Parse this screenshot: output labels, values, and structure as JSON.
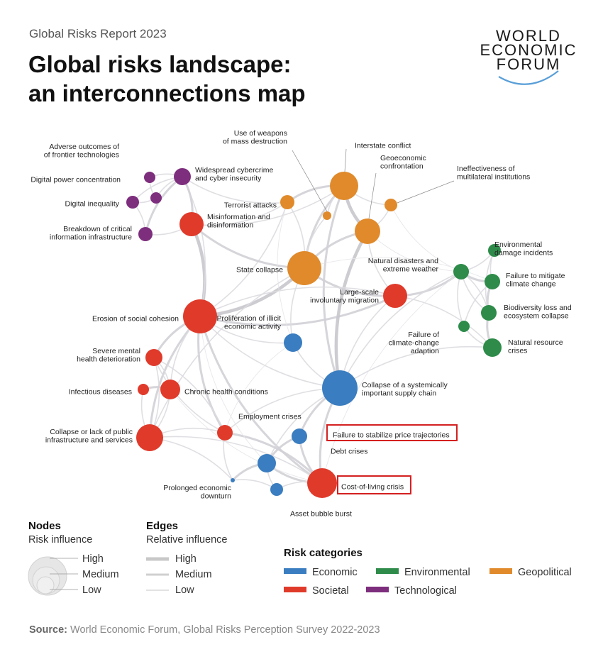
{
  "header": {
    "report": "Global Risks Report 2023",
    "title_line1": "Global risks landscape:",
    "title_line2": "an interconnections map"
  },
  "logo": {
    "line1": "WORLD",
    "line2": "ECONOMIC",
    "line3": "FORUM"
  },
  "colors": {
    "Economic": "#3a7dc0",
    "Environmental": "#2e8b4a",
    "Geopolitical": "#e08a2b",
    "Societal": "#e03a2b",
    "Technological": "#7d2e7d",
    "highlight": "#d42020"
  },
  "nodes": [
    {
      "id": "adverse",
      "cat": "Technological",
      "label": [
        "Adverse outcomes of",
        "of frontier technologies"
      ]
    },
    {
      "id": "digitalpower",
      "cat": "Technological",
      "label": [
        "Digital power concentration"
      ]
    },
    {
      "id": "digitalineq",
      "cat": "Technological",
      "label": [
        "Digital inequality"
      ]
    },
    {
      "id": "breakdown",
      "cat": "Technological",
      "label": [
        "Breakdown of critical",
        "information infrastructure"
      ]
    },
    {
      "id": "cyber",
      "cat": "Technological",
      "label": [
        "Widespread cybercrime",
        "and cyber insecurity"
      ]
    },
    {
      "id": "misinfo",
      "cat": "Societal",
      "label": [
        "Misinformation and",
        "disinformation"
      ]
    },
    {
      "id": "terror",
      "cat": "Geopolitical",
      "label": [
        "Terrorist attacks"
      ]
    },
    {
      "id": "wmd",
      "cat": "Geopolitical",
      "label": [
        "Use of weapons",
        "of mass destruction"
      ]
    },
    {
      "id": "interstate",
      "cat": "Geopolitical",
      "label": [
        "Interstate conflict"
      ]
    },
    {
      "id": "geoecon",
      "cat": "Geopolitical",
      "label": [
        "Geoeconomic",
        "confrontation"
      ]
    },
    {
      "id": "multilat",
      "cat": "Geopolitical",
      "label": [
        "Ineffectiveness of",
        "multilateral institutions"
      ]
    },
    {
      "id": "statecollapse",
      "cat": "Geopolitical",
      "label": [
        "State collapse"
      ]
    },
    {
      "id": "natdis",
      "cat": "Environmental",
      "label": [
        "Natural disasters and",
        "extreme weather"
      ]
    },
    {
      "id": "migration",
      "cat": "Societal",
      "label": [
        "Large-scale",
        "involuntary migration"
      ]
    },
    {
      "id": "envdamage",
      "cat": "Environmental",
      "label": [
        "Environmental",
        "damage incidents"
      ]
    },
    {
      "id": "mitigate",
      "cat": "Environmental",
      "label": [
        "Failure to mitigate",
        "climate change"
      ]
    },
    {
      "id": "biodiv",
      "cat": "Environmental",
      "label": [
        "Biodiversity loss and",
        "ecosystem collapse"
      ]
    },
    {
      "id": "adapt",
      "cat": "Environmental",
      "label": [
        "Failure of",
        "climate-change",
        "adaption"
      ]
    },
    {
      "id": "natres",
      "cat": "Environmental",
      "label": [
        "Natural resource",
        "crises"
      ]
    },
    {
      "id": "cohesion",
      "cat": "Societal",
      "label": [
        "Erosion of social cohesion"
      ]
    },
    {
      "id": "illicit",
      "cat": "Economic",
      "label": [
        "Proliferation of illicit",
        "economic activity"
      ]
    },
    {
      "id": "mental",
      "cat": "Societal",
      "label": [
        "Severe mental",
        "health deterioration"
      ]
    },
    {
      "id": "infectious",
      "cat": "Societal",
      "label": [
        "Infectious diseases"
      ]
    },
    {
      "id": "chronic",
      "cat": "Societal",
      "label": [
        "Chronic health conditions"
      ]
    },
    {
      "id": "supply",
      "cat": "Economic",
      "label": [
        "Collapse of a systemically",
        "important supply chain"
      ]
    },
    {
      "id": "infra",
      "cat": "Societal",
      "label": [
        "Collapse or lack of public",
        "infrastructure and services"
      ]
    },
    {
      "id": "employment",
      "cat": "Societal",
      "label": [
        "Employment crises"
      ]
    },
    {
      "id": "price",
      "cat": "Economic",
      "label": [
        "Failure to stabilize price trajectories"
      ],
      "highlight": true
    },
    {
      "id": "debt",
      "cat": "Economic",
      "label": [
        "Debt crises"
      ]
    },
    {
      "id": "downturn",
      "cat": "Economic",
      "label": [
        "Prolonged economic",
        "downturn"
      ]
    },
    {
      "id": "cost",
      "cat": "Societal",
      "label": [
        "Cost-of-living crisis"
      ],
      "highlight": true
    },
    {
      "id": "bubble",
      "cat": "Economic",
      "label": [
        "Asset bubble burst"
      ]
    }
  ],
  "legend": {
    "nodes_title": "Nodes",
    "nodes_sub": "Risk influence",
    "edges_title": "Edges",
    "edges_sub": "Relative influence",
    "levels": [
      "High",
      "Medium",
      "Low"
    ],
    "categories_title": "Risk categories",
    "categories": [
      "Economic",
      "Environmental",
      "Geopolitical",
      "Societal",
      "Technological"
    ]
  },
  "source": {
    "label": "Source:",
    "text": " World Economic Forum, Global Risks Perception Survey 2022-2023"
  }
}
